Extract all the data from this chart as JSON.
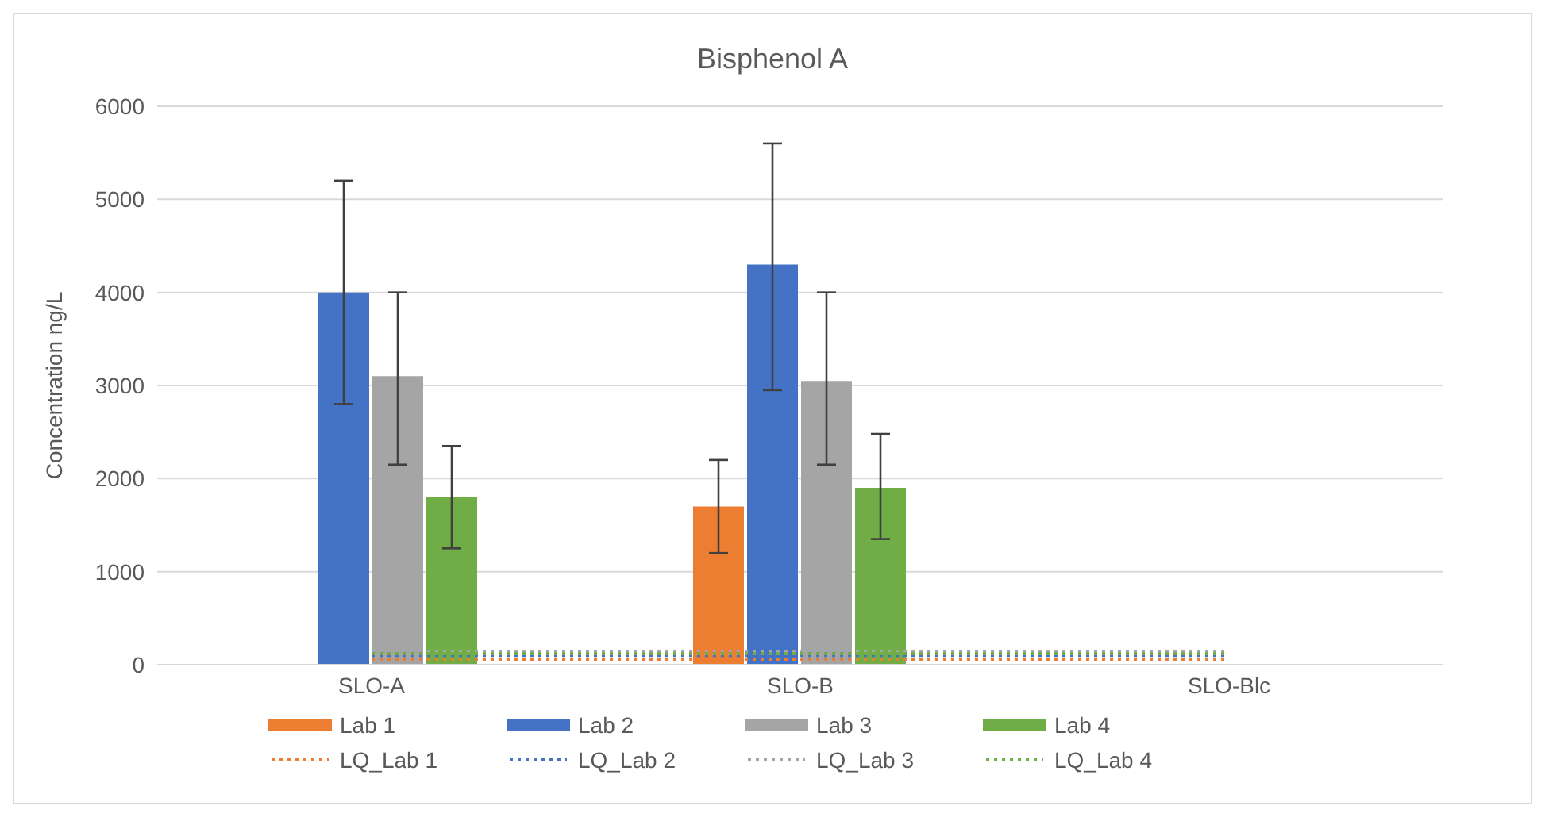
{
  "chart_data": {
    "type": "bar",
    "title": "Bisphenol A",
    "ylabel": "Concentration ng/L",
    "categories": [
      "SLO-A",
      "SLO-B",
      "SLO-Blc"
    ],
    "series": [
      {
        "name": "Lab 1",
        "color": "#ed7d31",
        "values": [
          null,
          1700,
          null
        ],
        "errors": [
          null,
          [
            1200,
            2200
          ],
          null
        ]
      },
      {
        "name": "Lab 2",
        "color": "#4472c4",
        "values": [
          4000,
          4300,
          null
        ],
        "errors": [
          [
            2800,
            5200
          ],
          [
            2950,
            5600
          ],
          null
        ]
      },
      {
        "name": "Lab 3",
        "color": "#a5a5a5",
        "values": [
          3100,
          3050,
          null
        ],
        "errors": [
          [
            2150,
            4000
          ],
          [
            2150,
            4000
          ],
          null
        ]
      },
      {
        "name": "Lab 4",
        "color": "#70ad47",
        "values": [
          1800,
          1900,
          null
        ],
        "errors": [
          [
            1250,
            2350
          ],
          [
            1350,
            2480
          ],
          null
        ]
      },
      {
        "name": "LQ_Lab 1",
        "type": "line",
        "line_style": "dotted",
        "color": "#ed7d31",
        "values": [
          60,
          60,
          60
        ]
      },
      {
        "name": "LQ_Lab 2",
        "type": "line",
        "line_style": "dotted",
        "color": "#4472c4",
        "values": [
          100,
          100,
          100
        ]
      },
      {
        "name": "LQ_Lab 3",
        "type": "line",
        "line_style": "dotted",
        "color": "#a5a5a5",
        "values": [
          140,
          140,
          140
        ]
      },
      {
        "name": "LQ_Lab 4",
        "type": "line",
        "line_style": "dotted",
        "color": "#70ad47",
        "values": [
          120,
          120,
          120
        ]
      }
    ],
    "ylim": [
      0,
      6000
    ],
    "yticks": [
      0,
      1000,
      2000,
      3000,
      4000,
      5000,
      6000
    ],
    "grid": "y",
    "legend": "bottom",
    "marker": "none"
  }
}
